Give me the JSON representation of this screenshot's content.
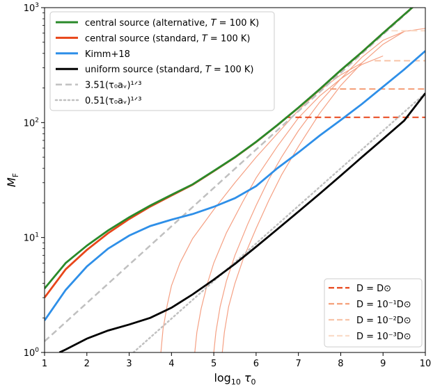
{
  "chart_data": {
    "type": "line",
    "xlabel": "log10 τ0",
    "ylabel": "M_F",
    "xlim": [
      1,
      10
    ],
    "ylim": [
      1,
      1000
    ],
    "yscale": "log",
    "x_ticks": [
      "1",
      "2",
      "3",
      "4",
      "5",
      "6",
      "7",
      "8",
      "9",
      "10"
    ],
    "y_ticks": [
      {
        "base": "10",
        "exp": "0",
        "value": 1
      },
      {
        "base": "10",
        "exp": "1",
        "value": 10
      },
      {
        "base": "10",
        "exp": "2",
        "value": 100
      },
      {
        "base": "10",
        "exp": "3",
        "value": 1000
      }
    ],
    "legend_main_position": "top-left",
    "legend_d_position": "bottom-right",
    "series": [
      {
        "name": "central source (alternative, T = 100 K)",
        "color": "#2a8a2a",
        "style": "solid",
        "x": [
          1.0,
          1.5,
          2.0,
          2.5,
          3.0,
          3.5,
          4.0,
          4.5,
          5.0,
          5.5,
          6.0,
          6.5,
          7.0,
          7.5,
          8.0,
          8.5,
          9.0,
          9.5,
          10.0
        ],
        "y": [
          3.6,
          6.0,
          8.5,
          11.5,
          15.0,
          19.0,
          23.5,
          29.0,
          38.0,
          50.0,
          68.0,
          95.0,
          135.0,
          195.0,
          285.0,
          410.0,
          600.0,
          870.0,
          1260.0
        ]
      },
      {
        "name": "central source (standard, T = 100 K)",
        "color": "#e8461a",
        "style": "solid",
        "x": [
          1.0,
          1.5,
          2.0,
          2.5,
          3.0,
          3.5,
          4.0,
          4.5,
          5.0,
          5.5,
          6.0,
          6.5,
          7.0,
          7.5,
          8.0,
          8.5,
          9.0,
          9.5,
          10.0
        ],
        "y": [
          3.0,
          5.3,
          7.8,
          10.9,
          14.5,
          18.6,
          23.2,
          28.8,
          37.8,
          49.8,
          67.8,
          94.8,
          134.8,
          194.8,
          284.8,
          409.8,
          599.8,
          869.8,
          1260.0
        ]
      },
      {
        "name": "Kimm+18",
        "color": "#2e8fe8",
        "style": "solid",
        "x": [
          1.0,
          1.5,
          2.0,
          2.5,
          3.0,
          3.5,
          4.0,
          4.5,
          5.0,
          5.5,
          6.0,
          6.5,
          7.0,
          7.5,
          8.0,
          8.5,
          9.0,
          9.5,
          10.0
        ],
        "y": [
          1.9,
          3.5,
          5.6,
          8.0,
          10.4,
          12.6,
          14.3,
          16.0,
          18.5,
          22.0,
          28.0,
          40.0,
          55.0,
          77.0,
          105.0,
          145.0,
          205.0,
          290.0,
          420.0
        ]
      },
      {
        "name": "uniform source (standard, T = 100 K)",
        "color": "#000000",
        "style": "solid",
        "x": [
          1.35,
          1.5,
          2.0,
          2.5,
          3.0,
          3.5,
          4.0,
          4.5,
          5.0,
          5.5,
          6.0,
          6.5,
          7.0,
          7.5,
          8.0,
          8.5,
          9.0,
          9.5,
          10.0
        ],
        "y": [
          1.0,
          1.06,
          1.32,
          1.55,
          1.75,
          2.0,
          2.45,
          3.2,
          4.3,
          5.9,
          8.3,
          11.8,
          16.8,
          24.0,
          34.5,
          50.0,
          72.0,
          104.0,
          180.0
        ]
      },
      {
        "name": "3.51(τ0 aν)^1/3",
        "color": "#c0c0c0",
        "style": "dashed",
        "x": [
          1.0,
          10.0
        ],
        "y": [
          1.25,
          1260.0
        ]
      },
      {
        "name": "0.51(τ0 aν)^1/3",
        "color": "#c0c0c0",
        "style": "dotted",
        "x": [
          3.1,
          10.0
        ],
        "y": [
          1.0,
          180.0
        ]
      },
      {
        "name": "D = D⊙",
        "color": "#e8461a",
        "style": "dashed",
        "x": [
          6.7,
          10.0
        ],
        "y": [
          111.0,
          111.0
        ]
      },
      {
        "name": "D = 10^-1 D⊙",
        "color": "#f4a07a",
        "style": "dashed",
        "x": [
          7.75,
          10.0
        ],
        "y": [
          196.0,
          196.0
        ]
      },
      {
        "name": "D = 10^-2 D⊙",
        "color": "#f8c4a8",
        "style": "dashed",
        "x": [
          8.8,
          10.0
        ],
        "y": [
          345.0,
          345.0
        ]
      },
      {
        "name": "D = 10^-3 D⊙",
        "color": "#fadcc8",
        "style": "dashed",
        "x": [
          9.2,
          10.0
        ],
        "y": [
          630.0,
          630.0
        ]
      }
    ],
    "thin_curves": {
      "color": "#f5a083",
      "note_series": "finite-D central source curves",
      "curves": [
        {
          "x": [
            3.75,
            3.8,
            3.9,
            4.0,
            4.2,
            4.5,
            5.0,
            5.5,
            6.0,
            6.5,
            7.0,
            7.5,
            8.0,
            8.5
          ],
          "y": [
            1.0,
            1.6,
            2.6,
            3.8,
            6.0,
            9.8,
            17.5,
            30.0,
            50.0,
            80.0,
            128.0,
            190.0,
            260.0,
            330.0
          ]
        },
        {
          "x": [
            4.55,
            4.6,
            4.7,
            4.85,
            5.0,
            5.3,
            5.7,
            6.0,
            6.5,
            7.0,
            7.5,
            8.0,
            8.5,
            9.0
          ],
          "y": [
            1.0,
            1.5,
            2.4,
            4.0,
            6.0,
            11.0,
            21.0,
            33.0,
            62.0,
            110.0,
            170.0,
            240.0,
            320.0,
            380.0
          ]
        },
        {
          "x": [
            5.0,
            5.05,
            5.15,
            5.3,
            5.5,
            5.8,
            6.0,
            6.3,
            6.6,
            7.0,
            7.5,
            8.0,
            8.5,
            9.0,
            9.5
          ],
          "y": [
            1.0,
            1.5,
            2.5,
            4.2,
            7.0,
            13.0,
            19.0,
            32.0,
            50.0,
            85.0,
            150.0,
            240.0,
            370.0,
            520.0,
            620.0
          ]
        },
        {
          "x": [
            5.2,
            5.25,
            5.35,
            5.5,
            5.7,
            6.0,
            6.3,
            6.6,
            7.0,
            7.5,
            8.0,
            8.5,
            9.0,
            9.5,
            10.0
          ],
          "y": [
            1.0,
            1.5,
            2.5,
            4.0,
            6.6,
            12.0,
            21.0,
            35.0,
            62.0,
            120.0,
            210.0,
            330.0,
            480.0,
            620.0,
            660.0
          ]
        }
      ]
    },
    "legend_main": [
      {
        "text": "central source (alternative, ",
        "italic": "T",
        "tail": " = 100 K)",
        "color": "#2a8a2a",
        "style": "solid"
      },
      {
        "text": "central source (standard, ",
        "italic": "T",
        "tail": " = 100 K)",
        "color": "#e8461a",
        "style": "solid"
      },
      {
        "text": "Kimm+18",
        "italic": "",
        "tail": "",
        "color": "#2e8fe8",
        "style": "solid"
      },
      {
        "text": "uniform source (standard, ",
        "italic": "T",
        "tail": " = 100 K)",
        "color": "#000000",
        "style": "solid"
      },
      {
        "text": "3.51(τ₀aᵥ)¹ᐟ³",
        "italic": "",
        "tail": "",
        "color": "#c0c0c0",
        "style": "dashed"
      },
      {
        "text": "0.51(τ₀aᵥ)¹ᐟ³",
        "italic": "",
        "tail": "",
        "color": "#c0c0c0",
        "style": "dotted"
      }
    ],
    "legend_d": [
      {
        "text": "D = D⊙",
        "color": "#e8461a"
      },
      {
        "text": "D = 10⁻¹D⊙",
        "color": "#f4a07a"
      },
      {
        "text": "D = 10⁻²D⊙",
        "color": "#f8c4a8"
      },
      {
        "text": "D = 10⁻³D⊙",
        "color": "#fadcc8"
      }
    ]
  }
}
